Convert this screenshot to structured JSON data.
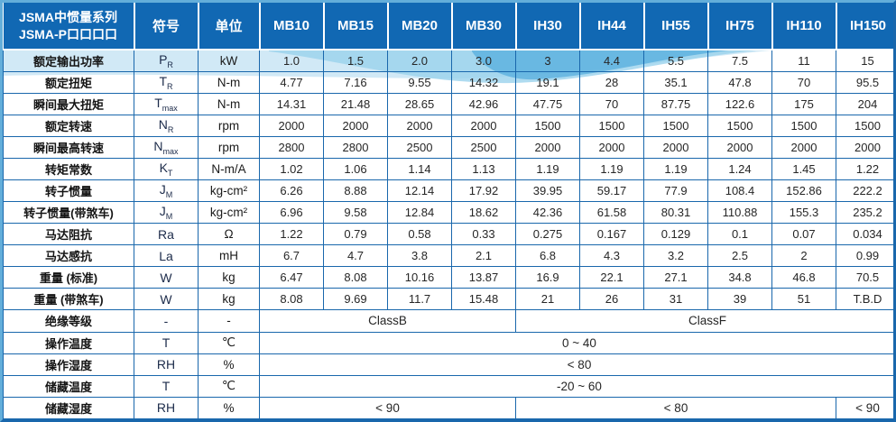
{
  "header": {
    "title_line1": "JSMA中惯量系列",
    "title_line2": "JSMA-P口口口口",
    "columns": [
      "符号",
      "单位",
      "MB10",
      "MB15",
      "MB20",
      "MB30",
      "IH30",
      "IH44",
      "IH55",
      "IH75",
      "IH110",
      "IH150"
    ]
  },
  "rows": [
    {
      "label": "额定输出功率",
      "sym": "P",
      "sub": "R",
      "unit": "kW",
      "values": [
        "1.0",
        "1.5",
        "2.0",
        "3.0",
        "3",
        "4.4",
        "5.5",
        "7.5",
        "11",
        "15"
      ]
    },
    {
      "label": "额定扭矩",
      "sym": "T",
      "sub": "R",
      "unit": "N-m",
      "values": [
        "4.77",
        "7.16",
        "9.55",
        "14.32",
        "19.1",
        "28",
        "35.1",
        "47.8",
        "70",
        "95.5"
      ]
    },
    {
      "label": "瞬间最大扭矩",
      "sym": "T",
      "sub": "max",
      "unit": "N-m",
      "values": [
        "14.31",
        "21.48",
        "28.65",
        "42.96",
        "47.75",
        "70",
        "87.75",
        "122.6",
        "175",
        "204"
      ]
    },
    {
      "label": "额定转速",
      "sym": "N",
      "sub": "R",
      "unit": "rpm",
      "values": [
        "2000",
        "2000",
        "2000",
        "2000",
        "1500",
        "1500",
        "1500",
        "1500",
        "1500",
        "1500"
      ]
    },
    {
      "label": "瞬间最高转速",
      "sym": "N",
      "sub": "max",
      "unit": "rpm",
      "values": [
        "2800",
        "2800",
        "2500",
        "2500",
        "2000",
        "2000",
        "2000",
        "2000",
        "2000",
        "2000"
      ]
    },
    {
      "label": "转矩常数",
      "sym": "K",
      "sub": "T",
      "unit": "N-m/A",
      "values": [
        "1.02",
        "1.06",
        "1.14",
        "1.13",
        "1.19",
        "1.19",
        "1.19",
        "1.24",
        "1.45",
        "1.22"
      ]
    },
    {
      "label": "转子惯量",
      "sym": "J",
      "sub": "M",
      "unit": "kg-cm²",
      "values": [
        "6.26",
        "8.88",
        "12.14",
        "17.92",
        "39.95",
        "59.17",
        "77.9",
        "108.4",
        "152.86",
        "222.2"
      ]
    },
    {
      "label": "转子惯量(带煞车)",
      "sym": "J",
      "sub": "M",
      "unit": "kg-cm²",
      "values": [
        "6.96",
        "9.58",
        "12.84",
        "18.62",
        "42.36",
        "61.58",
        "80.31",
        "110.88",
        "155.3",
        "235.2"
      ]
    },
    {
      "label": "马达阻抗",
      "sym": "Ra",
      "sub": "",
      "unit": "Ω",
      "values": [
        "1.22",
        "0.79",
        "0.58",
        "0.33",
        "0.275",
        "0.167",
        "0.129",
        "0.1",
        "0.07",
        "0.034"
      ]
    },
    {
      "label": "马达感抗",
      "sym": "La",
      "sub": "",
      "unit": "mH",
      "values": [
        "6.7",
        "4.7",
        "3.8",
        "2.1",
        "6.8",
        "4.3",
        "3.2",
        "2.5",
        "2",
        "0.99"
      ]
    },
    {
      "label": "重量 (标准)",
      "sym": "W",
      "sub": "",
      "unit": "kg",
      "values": [
        "6.47",
        "8.08",
        "10.16",
        "13.87",
        "16.9",
        "22.1",
        "27.1",
        "34.8",
        "46.8",
        "70.5"
      ]
    },
    {
      "label": "重量 (带煞车)",
      "sym": "W",
      "sub": "",
      "unit": "kg",
      "values": [
        "8.08",
        "9.69",
        "11.7",
        "15.48",
        "21",
        "26",
        "31",
        "39",
        "51",
        "T.B.D"
      ]
    },
    {
      "label": "绝缘等级",
      "sym": "-",
      "sub": "",
      "unit": "-",
      "spans": [
        {
          "text": "ClassB",
          "cols": 4
        },
        {
          "text": "ClassF",
          "cols": 6
        }
      ]
    },
    {
      "label": "操作温度",
      "sym": "T",
      "sub": "",
      "unit": "℃",
      "spans": [
        {
          "text": "0 ~ 40",
          "cols": 10
        }
      ]
    },
    {
      "label": "操作湿度",
      "sym": "RH",
      "sub": "",
      "unit": "%",
      "spans": [
        {
          "text": "< 80",
          "cols": 10
        }
      ]
    },
    {
      "label": "储藏温度",
      "sym": "T",
      "sub": "",
      "unit": "℃",
      "spans": [
        {
          "text": "-20 ~ 60",
          "cols": 10
        }
      ]
    },
    {
      "label": "储藏湿度",
      "sym": "RH",
      "sub": "",
      "unit": "%",
      "spans": [
        {
          "text": "< 90",
          "cols": 4
        },
        {
          "text": "< 80",
          "cols": 5
        },
        {
          "text": "< 90",
          "cols": 1
        }
      ]
    }
  ],
  "colors": {
    "header_bg": "#1168b3",
    "border": "#1967ac",
    "border_light": "#63aeda",
    "wave_light": "#cfe8f6",
    "wave_mid": "#9ad2ec",
    "wave_deep": "#56aedd"
  }
}
